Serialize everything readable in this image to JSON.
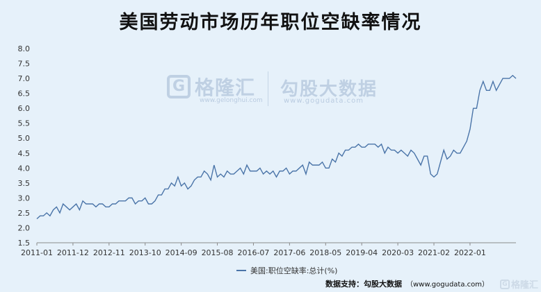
{
  "chart_data": {
    "type": "line",
    "title": "美国劳动市场历年职位空缺率情况",
    "ylim": [
      1.5,
      8.0
    ],
    "yticks": [
      "1.5",
      "2.0",
      "2.5",
      "3.0",
      "3.5",
      "4.0",
      "4.5",
      "5.0",
      "5.5",
      "6.0",
      "6.5",
      "7.0",
      "7.5",
      "8.0"
    ],
    "xticks": [
      "2011-01",
      "2011-12",
      "2012-11",
      "2013-10",
      "2014-09",
      "2015-08",
      "2016-07",
      "2017-06",
      "2018-05",
      "2019-04",
      "2020-03",
      "2021-02",
      "2022-01"
    ],
    "x_start": "2011-01",
    "series": [
      {
        "name": "美国:职位空缺率:总计(%)",
        "values": [
          2.3,
          2.4,
          2.4,
          2.5,
          2.4,
          2.6,
          2.7,
          2.5,
          2.8,
          2.7,
          2.6,
          2.7,
          2.8,
          2.6,
          2.9,
          2.8,
          2.8,
          2.8,
          2.7,
          2.8,
          2.8,
          2.7,
          2.7,
          2.8,
          2.8,
          2.9,
          2.9,
          2.9,
          3.0,
          3.0,
          2.8,
          2.9,
          2.9,
          3.0,
          2.8,
          2.8,
          2.9,
          3.1,
          3.1,
          3.3,
          3.3,
          3.5,
          3.4,
          3.7,
          3.4,
          3.5,
          3.3,
          3.4,
          3.6,
          3.7,
          3.7,
          3.9,
          3.8,
          3.6,
          4.1,
          3.7,
          3.8,
          3.7,
          3.9,
          3.8,
          3.8,
          3.9,
          4.0,
          3.8,
          4.1,
          3.9,
          3.9,
          3.9,
          4.0,
          3.8,
          3.9,
          3.8,
          3.9,
          3.7,
          3.9,
          3.9,
          4.0,
          3.8,
          3.9,
          3.9,
          4.0,
          4.1,
          3.8,
          4.2,
          4.1,
          4.1,
          4.1,
          4.2,
          4.0,
          4.0,
          4.3,
          4.2,
          4.5,
          4.4,
          4.6,
          4.6,
          4.7,
          4.7,
          4.8,
          4.7,
          4.7,
          4.8,
          4.8,
          4.8,
          4.7,
          4.8,
          4.5,
          4.7,
          4.6,
          4.6,
          4.5,
          4.6,
          4.5,
          4.4,
          4.6,
          4.5,
          4.3,
          4.1,
          4.4,
          4.4,
          3.8,
          3.7,
          3.8,
          4.2,
          4.6,
          4.3,
          4.4,
          4.6,
          4.5,
          4.5,
          4.7,
          4.9,
          5.3,
          6.0,
          6.0,
          6.6,
          6.9,
          6.6,
          6.6,
          6.9,
          6.6,
          6.8,
          7.0,
          7.0,
          7.0,
          7.1,
          7.0
        ]
      }
    ],
    "legend": {
      "label": "美国:职位空缺率:总计(%)",
      "placement": "bottom-center"
    },
    "line_color": "#4a74a8"
  },
  "watermark": {
    "brand_1": "格隆汇",
    "brand_1_url": "www.gelonghui.com",
    "brand_2": "勾股大数据",
    "brand_2_url": "www.gogudata.com",
    "corner": "格隆汇"
  },
  "source": {
    "label": "数据支持：勾股大数据",
    "url": "（www.gogudata.com）"
  }
}
